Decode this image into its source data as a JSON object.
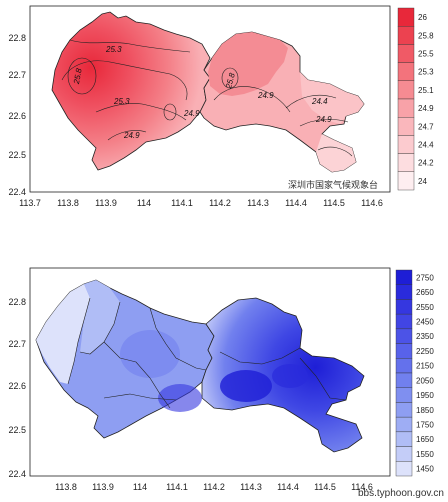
{
  "top_map": {
    "x_ticks": [
      "113.7",
      "113.8",
      "113.9",
      "114",
      "114.1",
      "114.2",
      "114.3",
      "114.4",
      "114.5",
      "114.6"
    ],
    "y_ticks": [
      "22.4",
      "22.5",
      "22.6",
      "22.7",
      "22.8"
    ],
    "colorbar_ticks": [
      "26",
      "25.8",
      "25.5",
      "25.3",
      "25.1",
      "24.9",
      "24.7",
      "24.4",
      "24.2",
      "24"
    ],
    "colorbar_colors": [
      "#e8283a",
      "#ec4250",
      "#f05a66",
      "#f3737c",
      "#f68b92",
      "#f8a2a8",
      "#fab7bc",
      "#fccbcf",
      "#fddde0",
      "#feeef0"
    ],
    "contour_labels": [
      "25.3",
      "25.8",
      "25.3",
      "24.9",
      "24.9",
      "24.4",
      "24.9",
      "25.8",
      "24.9"
    ],
    "stamp": "深圳市国家气候观象台"
  },
  "bottom_map": {
    "x_ticks": [
      "113.8",
      "113.9",
      "114",
      "114.1",
      "114.2",
      "114.3",
      "114.4",
      "114.5",
      "114.6"
    ],
    "y_ticks": [
      "22.4",
      "22.5",
      "22.6",
      "22.7",
      "22.8"
    ],
    "colorbar_ticks": [
      "2750",
      "2650",
      "2550",
      "2450",
      "2350",
      "2250",
      "2150",
      "2050",
      "1950",
      "1850",
      "1750",
      "1650",
      "1550",
      "1450"
    ],
    "colorbar_colors": [
      "#1e1ed6",
      "#2a2bdc",
      "#3537e0",
      "#4145e4",
      "#4c53e7",
      "#5862ea",
      "#6471ec",
      "#7180ee",
      "#7f8ff0",
      "#8e9ef2",
      "#9eadf4",
      "#b0bdf6",
      "#c4cdf8",
      "#dde2fb"
    ]
  },
  "watermark": "bbs.typhoon.gov.cn"
}
